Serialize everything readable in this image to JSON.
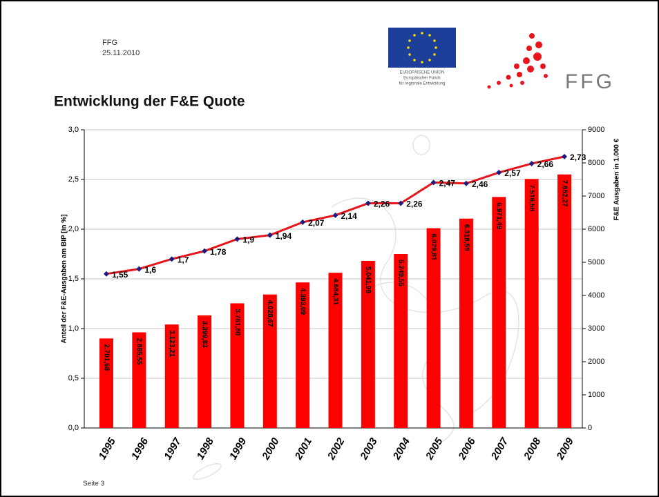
{
  "header": {
    "org": "FFG",
    "date": "25.11.2010",
    "eu_lines": [
      "EUROPÄISCHE UNION",
      "Europäischer Fonds",
      "für regionale Entwicklung"
    ],
    "logo": "FFG"
  },
  "footer": "Seite 3",
  "chart_data": {
    "type": "bar_line",
    "title": "Entwicklung der F&E Quote",
    "y_label": "Anteil der F&E-Ausgaben am BIP [in %]",
    "y2_label": "F&E Ausgaben in 1.000 €",
    "categories": [
      "1995",
      "1996",
      "1997",
      "1998",
      "1999",
      "2000",
      "2001",
      "2002",
      "2003",
      "2004",
      "2005",
      "2006",
      "2007",
      "2008",
      "2009"
    ],
    "series": [
      {
        "name": "F&E Ausgaben",
        "type": "bar",
        "axis": "y2",
        "color": "#ff0000",
        "values": [
          2701.68,
          2885.55,
          3123.21,
          3399.83,
          3761.8,
          4028.67,
          4393.09,
          4684.31,
          5041.98,
          5249.55,
          6029.81,
          6318.59,
          6971.49,
          7516.58,
          7652.27
        ],
        "value_labels": [
          "2.701,68",
          "2.885,55",
          "3.123,21",
          "3.399,83",
          "3.761,80",
          "4.028,67",
          "4.393,09",
          "4.684,31",
          "5.041,98",
          "5.249,55",
          "6.029,81",
          "6.318,59",
          "6.971,49",
          "7.516,58",
          "7.652,27"
        ]
      },
      {
        "name": "F&E Quote",
        "type": "line",
        "axis": "y",
        "color": "#e8141c",
        "marker_color": "#1a1a80",
        "values": [
          1.55,
          1.6,
          1.7,
          1.78,
          1.9,
          1.94,
          2.07,
          2.14,
          2.26,
          2.26,
          2.47,
          2.46,
          2.57,
          2.66,
          2.73
        ],
        "value_labels": [
          "1,55",
          "1,6",
          "1,7",
          "1,78",
          "1,9",
          "1,94",
          "2,07",
          "2,14",
          "2,26",
          "2,26",
          "2,47",
          "2,46",
          "2,57",
          "2,66",
          "2,73"
        ]
      }
    ],
    "ylim": [
      0,
      3
    ],
    "yticks": [
      {
        "value": 0,
        "label": "0,0"
      },
      {
        "value": 0.5,
        "label": "0,5"
      },
      {
        "value": 1,
        "label": "1,0"
      },
      {
        "value": 1.5,
        "label": "1,5"
      },
      {
        "value": 2,
        "label": "2,0"
      },
      {
        "value": 2.5,
        "label": "2,5"
      },
      {
        "value": 3,
        "label": "3,0"
      }
    ],
    "y2lim": [
      0,
      9000
    ],
    "y2ticks": [
      0,
      1000,
      2000,
      3000,
      4000,
      5000,
      6000,
      7000,
      8000,
      9000
    ],
    "grid": true
  }
}
